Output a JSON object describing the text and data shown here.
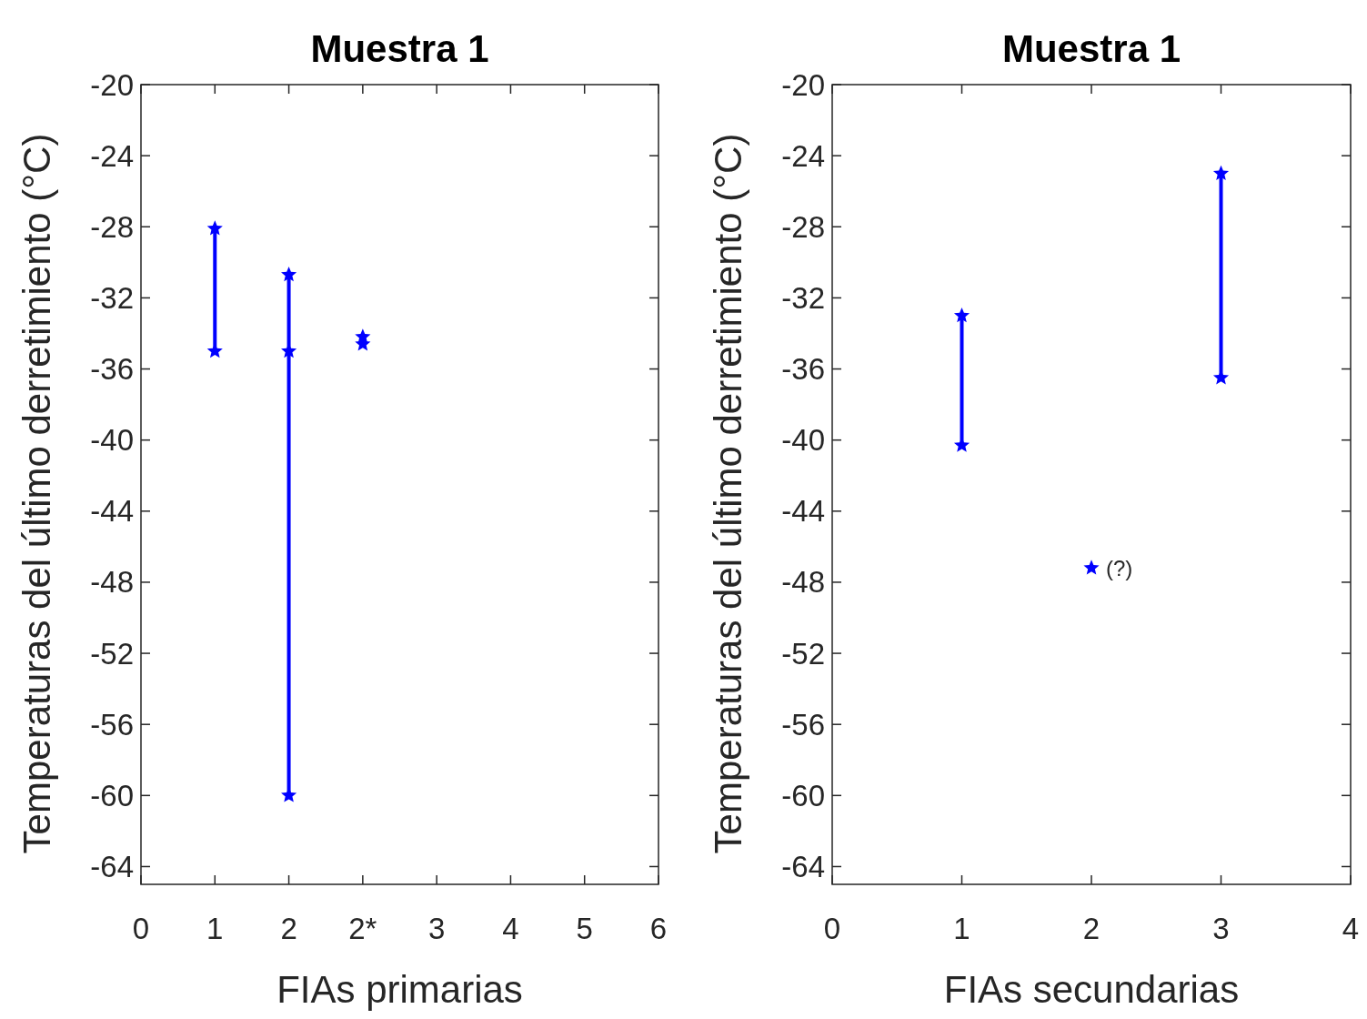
{
  "chart_data": [
    {
      "type": "line",
      "title": "Muestra 1",
      "xlabel": "FIAs primarias",
      "ylabel": "Temperaturas del último derretimiento (°C)",
      "categories": [
        "0",
        "1",
        "2",
        "2*",
        "3",
        "4",
        "5",
        "6"
      ],
      "ylim": [
        -65,
        -20
      ],
      "yticks": [
        -64,
        -60,
        -56,
        -52,
        -48,
        -44,
        -40,
        -36,
        -32,
        -28,
        -24,
        -20
      ],
      "marker": "star",
      "line_style": "solid",
      "series": [
        {
          "color": "#0000ff",
          "x": [
            "1",
            "1"
          ],
          "values": [
            -28.1,
            -35
          ]
        },
        {
          "color": "#0000ff",
          "x": [
            "2",
            "2",
            "2"
          ],
          "values": [
            -30.7,
            -35,
            -60
          ]
        },
        {
          "type": "scatter",
          "color": "#0000ff",
          "x": [
            "2*",
            "2*"
          ],
          "values": [
            -34.2,
            -34.6
          ]
        }
      ]
    },
    {
      "type": "line",
      "title": "Muestra 1",
      "xlabel": "FIAs secundarias",
      "ylabel": "Temperaturas del último derretimiento (°C)",
      "xlim": [
        0,
        4
      ],
      "xticks": [
        0,
        1,
        2,
        3,
        4
      ],
      "ylim": [
        -65,
        -20
      ],
      "yticks": [
        -64,
        -60,
        -56,
        -52,
        -48,
        -44,
        -40,
        -36,
        -32,
        -28,
        -24,
        -20
      ],
      "marker": "star",
      "line_style": "solid",
      "annotations": [
        {
          "text": "(?)",
          "x": 2,
          "y": -47.2
        }
      ],
      "series": [
        {
          "color": "#0000ff",
          "x": [
            1,
            1
          ],
          "values": [
            -33,
            -40.3
          ]
        },
        {
          "type": "scatter",
          "color": "#0000ff",
          "x": [
            2
          ],
          "values": [
            -47.2
          ]
        },
        {
          "color": "#0000ff",
          "x": [
            3,
            3
          ],
          "values": [
            -25,
            -36.5
          ]
        }
      ]
    }
  ]
}
